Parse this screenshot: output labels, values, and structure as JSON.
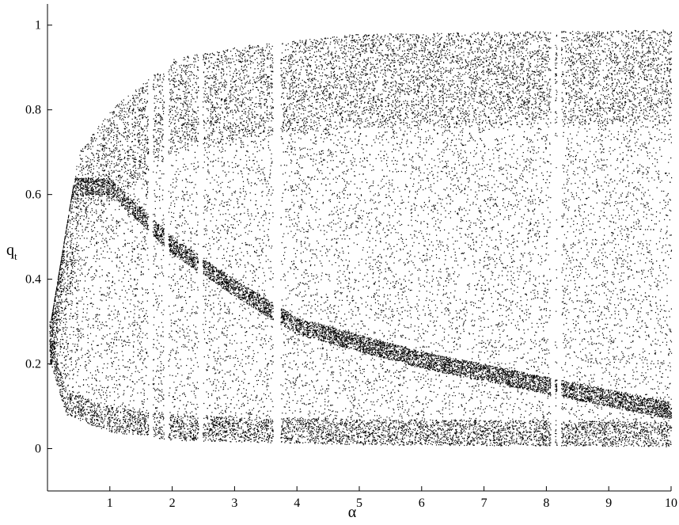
{
  "chart_data": {
    "type": "scatter",
    "title": "",
    "xlabel": "α",
    "ylabel_main": "q",
    "ylabel_sub": "t",
    "xlim": [
      0,
      10
    ],
    "ylim": [
      -0.1,
      1.05
    ],
    "x_ticks": [
      1,
      2,
      3,
      4,
      5,
      6,
      7,
      8,
      9,
      10
    ],
    "x_tick_labels": [
      "1",
      "2",
      "3",
      "4",
      "5",
      "6",
      "7",
      "8",
      "9",
      "10"
    ],
    "y_ticks": [
      0,
      0.2,
      0.4,
      0.6,
      0.8,
      1
    ],
    "y_tick_labels": [
      "0",
      "0.2",
      "0.4",
      "0.6",
      "0.8",
      "1"
    ],
    "grid": false,
    "point_color": "#000000",
    "description_of_attractor": {
      "lower_bound_curve_at_alpha": [
        [
          0.05,
          0.2
        ],
        [
          0.3,
          0.08
        ],
        [
          1,
          0.04
        ],
        [
          2,
          0.02
        ],
        [
          5,
          0.01
        ],
        [
          10,
          0.005
        ]
      ],
      "upper_bound_curve_at_alpha": [
        [
          0.05,
          0.3
        ],
        [
          0.5,
          0.7
        ],
        [
          1,
          0.8
        ],
        [
          2,
          0.92
        ],
        [
          3,
          0.95
        ],
        [
          5,
          0.98
        ],
        [
          10,
          0.99
        ]
      ],
      "dense_band_centers": [
        [
          1,
          0.62
        ],
        [
          2,
          0.48
        ],
        [
          3,
          0.38
        ],
        [
          4,
          0.29
        ],
        [
          6,
          0.21
        ],
        [
          8,
          0.15
        ],
        [
          10,
          0.09
        ]
      ],
      "white_gaps_alpha": [
        1.65,
        1.9,
        2.45,
        3.65,
        3.7,
        8.1,
        8.2
      ]
    }
  }
}
